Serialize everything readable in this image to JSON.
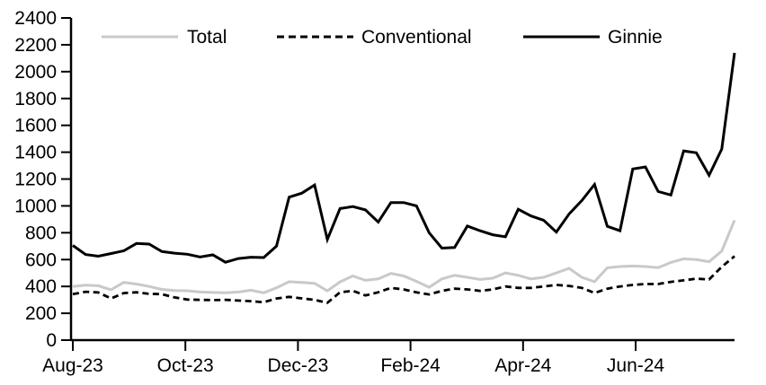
{
  "chart_data": {
    "type": "line",
    "title": "",
    "xlabel": "",
    "ylabel": "",
    "x_tick_labels": [
      "Aug-23",
      "Oct-23",
      "Dec-23",
      "Feb-24",
      "Apr-24",
      "Jun-24"
    ],
    "y_ticks": [
      0,
      200,
      400,
      600,
      800,
      1000,
      1200,
      1400,
      1600,
      1800,
      2000,
      2200,
      2400
    ],
    "ylim": [
      0,
      2400
    ],
    "x_frequency": "weekly",
    "grid": false,
    "legend_position": "top",
    "background_color": "#ffffff",
    "axis_color": "#000000",
    "series": [
      {
        "name": "Total",
        "color": "#c9c9c9",
        "line_style": "solid",
        "values": [
          400,
          410,
          405,
          375,
          430,
          418,
          400,
          378,
          370,
          368,
          358,
          355,
          352,
          358,
          372,
          352,
          390,
          435,
          430,
          423,
          367,
          434,
          478,
          445,
          456,
          497,
          478,
          438,
          394,
          456,
          483,
          468,
          452,
          461,
          501,
          483,
          456,
          468,
          501,
          535,
          468,
          435,
          539,
          548,
          552,
          548,
          540,
          579,
          606,
          600,
          584,
          664,
          893
        ]
      },
      {
        "name": "Conventional",
        "color": "#000000",
        "line_style": "dashed",
        "values": [
          342,
          360,
          355,
          310,
          350,
          356,
          345,
          342,
          318,
          302,
          300,
          298,
          300,
          295,
          290,
          282,
          310,
          322,
          311,
          300,
          278,
          356,
          367,
          333,
          356,
          389,
          378,
          356,
          340,
          367,
          384,
          378,
          367,
          378,
          400,
          389,
          389,
          400,
          411,
          404,
          389,
          351,
          383,
          400,
          411,
          418,
          418,
          434,
          445,
          458,
          452,
          546,
          625
        ]
      },
      {
        "name": "Ginnie",
        "color": "#000000",
        "line_style": "solid",
        "values": [
          705,
          638,
          625,
          645,
          665,
          720,
          715,
          660,
          648,
          640,
          620,
          635,
          580,
          608,
          618,
          615,
          700,
          1065,
          1095,
          1155,
          750,
          980,
          995,
          970,
          880,
          1025,
          1025,
          1000,
          800,
          685,
          690,
          850,
          815,
          785,
          770,
          975,
          925,
          893,
          805,
          940,
          1040,
          1160,
          848,
          815,
          1275,
          1290,
          1107,
          1081,
          1409,
          1396,
          1228,
          1423,
          2140
        ]
      }
    ]
  }
}
